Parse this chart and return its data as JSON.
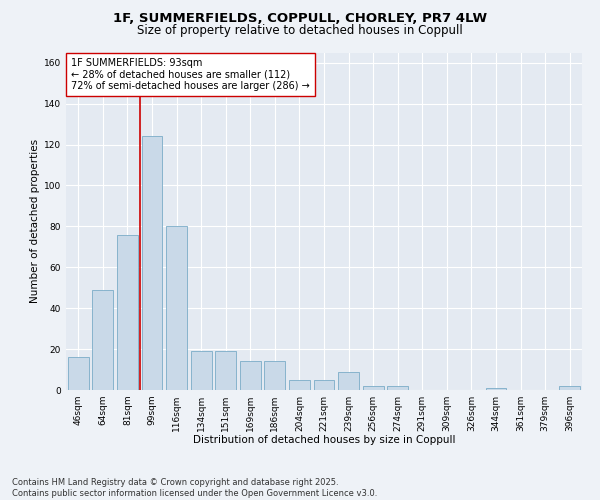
{
  "title1": "1F, SUMMERFIELDS, COPPULL, CHORLEY, PR7 4LW",
  "title2": "Size of property relative to detached houses in Coppull",
  "xlabel": "Distribution of detached houses by size in Coppull",
  "ylabel": "Number of detached properties",
  "categories": [
    "46sqm",
    "64sqm",
    "81sqm",
    "99sqm",
    "116sqm",
    "134sqm",
    "151sqm",
    "169sqm",
    "186sqm",
    "204sqm",
    "221sqm",
    "239sqm",
    "256sqm",
    "274sqm",
    "291sqm",
    "309sqm",
    "326sqm",
    "344sqm",
    "361sqm",
    "379sqm",
    "396sqm"
  ],
  "values": [
    16,
    49,
    76,
    124,
    80,
    19,
    19,
    14,
    14,
    5,
    5,
    9,
    2,
    2,
    0,
    0,
    0,
    1,
    0,
    0,
    2
  ],
  "bar_color": "#c9d9e8",
  "bar_edge_color": "#7aacc8",
  "vline_color": "#cc0000",
  "vline_x": 2.5,
  "annotation_text": "1F SUMMERFIELDS: 93sqm\n← 28% of detached houses are smaller (112)\n72% of semi-detached houses are larger (286) →",
  "annotation_box_color": "#ffffff",
  "annotation_box_edge_color": "#cc0000",
  "ylim": [
    0,
    165
  ],
  "yticks": [
    0,
    20,
    40,
    60,
    80,
    100,
    120,
    140,
    160
  ],
  "footer_text": "Contains HM Land Registry data © Crown copyright and database right 2025.\nContains public sector information licensed under the Open Government Licence v3.0.",
  "background_color": "#eef2f7",
  "plot_background_color": "#e4eaf2",
  "grid_color": "#ffffff",
  "title_fontsize": 9.5,
  "subtitle_fontsize": 8.5,
  "annotation_fontsize": 7.0,
  "tick_fontsize": 6.5,
  "ylabel_fontsize": 7.5,
  "xlabel_fontsize": 7.5,
  "footer_fontsize": 6.0
}
